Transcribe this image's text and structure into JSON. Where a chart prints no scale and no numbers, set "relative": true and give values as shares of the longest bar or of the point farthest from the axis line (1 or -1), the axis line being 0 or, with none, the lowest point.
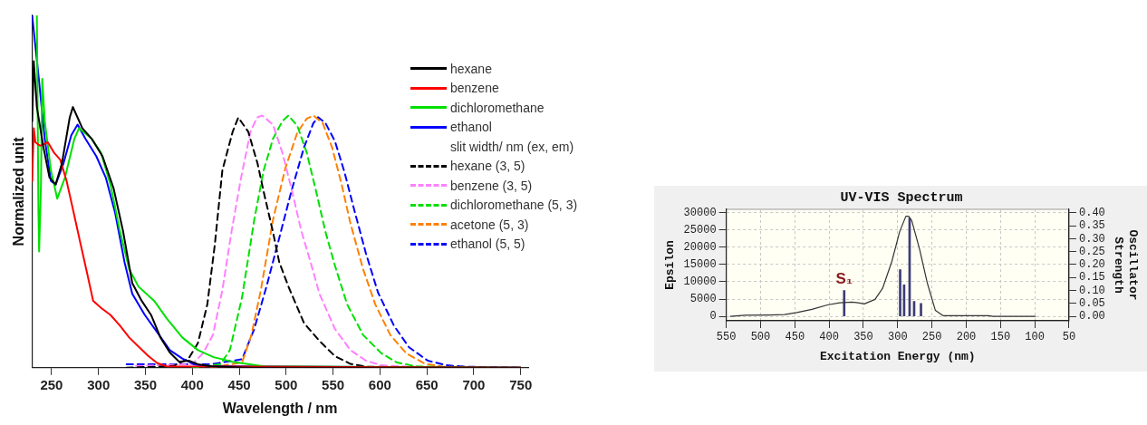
{
  "chart_data": [
    {
      "type": "line",
      "xlabel": "Wavelength / nm",
      "ylabel": "Normalized unit",
      "relative": true,
      "xlim": [
        229,
        758
      ],
      "xticks": [
        250,
        300,
        350,
        400,
        450,
        500,
        550,
        600,
        650,
        700,
        750
      ],
      "marker": "none",
      "legend": "top right",
      "annotations": [
        "slit width/ nm (ex, em)"
      ],
      "series": [
        {
          "name": "hexane",
          "color": "#000000",
          "line_style": "solid",
          "x": [
            229.3,
            231,
            234.3,
            241,
            247.7,
            254.3,
            261,
            269.3,
            272.7,
            277.7,
            282.7,
            292.7,
            304.3,
            316,
            326,
            336,
            346,
            356,
            366,
            376,
            386,
            396,
            406,
            420,
            460,
            750
          ],
          "values": [
            0.7,
            0.87,
            0.74,
            0.63,
            0.54,
            0.52,
            0.58,
            0.71,
            0.74,
            0.71,
            0.68,
            0.65,
            0.6,
            0.51,
            0.39,
            0.24,
            0.19,
            0.15,
            0.086,
            0.043,
            0.017,
            0.02,
            0.01,
            0.004,
            0,
            0
          ]
        },
        {
          "name": "benzene",
          "color": "#ff0000",
          "line_style": "solid",
          "x": [
            229.3,
            231,
            232.7,
            237.7,
            246,
            252.7,
            259.3,
            266,
            272.7,
            281,
            287.7,
            294.3,
            302.7,
            312.7,
            322.7,
            332.7,
            342.7,
            352.7,
            362.7,
            372.7,
            750
          ],
          "values": [
            0.53,
            0.68,
            0.64,
            0.63,
            0.64,
            0.61,
            0.59,
            0.53,
            0.45,
            0.35,
            0.27,
            0.19,
            0.17,
            0.15,
            0.12,
            0.086,
            0.06,
            0.034,
            0.013,
            0.004,
            0
          ]
        },
        {
          "name": "dichloromethane",
          "color": "#00e000",
          "line_style": "solid",
          "x": [
            234.3,
            236,
            236.7,
            238.7,
            240,
            242.7,
            249.3,
            256,
            264.3,
            274.3,
            279.3,
            292.7,
            302.7,
            312.7,
            322.7,
            332.7,
            342.7,
            359.3,
            372.7,
            389.3,
            406,
            422.7,
            442.7,
            462.7,
            476,
            750
          ],
          "values": [
            1.0,
            0.44,
            0.33,
            0.52,
            0.82,
            0.7,
            0.56,
            0.48,
            0.54,
            0.65,
            0.68,
            0.65,
            0.61,
            0.52,
            0.39,
            0.28,
            0.23,
            0.19,
            0.14,
            0.086,
            0.05,
            0.03,
            0.017,
            0.009,
            0.004,
            0
          ]
        },
        {
          "name": "ethanol",
          "color": "#0000ff",
          "line_style": "solid",
          "x": [
            229.3,
            236,
            242.7,
            249.3,
            254.3,
            262.7,
            271,
            277.7,
            286,
            297.7,
            307.7,
            317.7,
            327.7,
            336,
            349.3,
            362.7,
            376,
            389.3,
            402.7,
            416,
            750
          ],
          "values": [
            1.0,
            0.83,
            0.65,
            0.53,
            0.52,
            0.58,
            0.66,
            0.69,
            0.65,
            0.6,
            0.54,
            0.44,
            0.3,
            0.21,
            0.15,
            0.1,
            0.05,
            0.026,
            0.009,
            0.004,
            0
          ]
        },
        {
          "name": "hexane (3, 5)",
          "color": "#000000",
          "line_style": "dashed",
          "x": [
            330,
            380,
            396,
            406,
            416,
            424,
            432,
            443,
            449,
            459.6,
            469.5,
            476,
            486,
            492.6,
            502.5,
            519,
            535.5,
            552,
            568.5,
            585,
            650
          ],
          "values": [
            0,
            0.005,
            0.026,
            0.07,
            0.18,
            0.35,
            0.56,
            0.67,
            0.71,
            0.67,
            0.58,
            0.5,
            0.385,
            0.3,
            0.23,
            0.127,
            0.076,
            0.033,
            0.011,
            0.003,
            0
          ]
        },
        {
          "name": "benzene (3, 5)",
          "color": "#ff80ff",
          "line_style": "dashed",
          "x": [
            340,
            400,
            412,
            422,
            432,
            442,
            452,
            462,
            469,
            474.5,
            486,
            496,
            506,
            516,
            526,
            535.5,
            552,
            568.5,
            585,
            601.5,
            650
          ],
          "values": [
            0.005,
            0.01,
            0.043,
            0.094,
            0.22,
            0.39,
            0.54,
            0.67,
            0.71,
            0.716,
            0.69,
            0.61,
            0.505,
            0.39,
            0.3,
            0.21,
            0.11,
            0.05,
            0.02,
            0.007,
            0
          ]
        },
        {
          "name": "dichloromethane (5, 3)",
          "color": "#00e000",
          "line_style": "dashed",
          "x": [
            400,
            430,
            440,
            453,
            466,
            476,
            486,
            496,
            502.5,
            512,
            522,
            532,
            542,
            552,
            565,
            582,
            601.5,
            618,
            638,
            700
          ],
          "values": [
            0,
            0.01,
            0.05,
            0.2,
            0.42,
            0.56,
            0.65,
            0.7,
            0.716,
            0.686,
            0.61,
            0.5,
            0.385,
            0.29,
            0.18,
            0.093,
            0.041,
            0.015,
            0.004,
            0
          ]
        },
        {
          "name": "acetone (5, 3)",
          "color": "#ff8000",
          "line_style": "dashed",
          "x": [
            420,
            453,
            463,
            473,
            486,
            499,
            512,
            522,
            529,
            539,
            549,
            559,
            568.5,
            582,
            595,
            611,
            628,
            648,
            667.5,
            720
          ],
          "values": [
            0,
            0.015,
            0.093,
            0.22,
            0.42,
            0.565,
            0.668,
            0.707,
            0.716,
            0.694,
            0.625,
            0.522,
            0.41,
            0.28,
            0.18,
            0.093,
            0.041,
            0.011,
            0.003,
            0
          ]
        },
        {
          "name": "ethanol (5, 5)",
          "color": "#0000ff",
          "line_style": "dashed",
          "x": [
            330,
            420,
            453,
            466,
            479,
            492.6,
            506,
            519,
            529,
            534,
            542,
            552,
            562,
            572,
            585,
            598,
            615,
            631,
            651,
            671,
            690.6,
            750
          ],
          "values": [
            0.01,
            0.01,
            0.024,
            0.11,
            0.23,
            0.368,
            0.505,
            0.625,
            0.694,
            0.711,
            0.694,
            0.643,
            0.557,
            0.454,
            0.325,
            0.213,
            0.119,
            0.058,
            0.02,
            0.007,
            0.003,
            0
          ]
        }
      ]
    },
    {
      "type": "line",
      "title": "UV-VIS Spectrum",
      "xlabel": "Excitation Energy (nm)",
      "ylabel": "Epsilon",
      "y2label": "Oscillator Strength",
      "xlim": [
        550,
        50
      ],
      "xticks": [
        550,
        500,
        450,
        400,
        350,
        300,
        250,
        200,
        150,
        100,
        50
      ],
      "ylim": [
        -1300,
        31000
      ],
      "yticks": [
        0,
        5000,
        10000,
        15000,
        20000,
        25000,
        30000
      ],
      "y2lim": [
        -0.0173,
        0.4133
      ],
      "y2ticks": [
        {
          "value": 0,
          "label": "0.00"
        },
        {
          "value": 0.05,
          "label": "0.05"
        },
        {
          "value": 0.1,
          "label": "0.10"
        },
        {
          "value": 0.15,
          "label": "0.15"
        },
        {
          "value": 0.2,
          "label": "0.20"
        },
        {
          "value": 0.25,
          "label": "0.25"
        },
        {
          "value": 0.3,
          "label": "0.30"
        },
        {
          "value": 0.35,
          "label": "0.35"
        },
        {
          "value": 0.4,
          "label": "0.40"
        }
      ],
      "grid": true,
      "marker": "none",
      "annotations": [
        {
          "text": "S₁",
          "x": 378,
          "y": 7400
        }
      ],
      "series": [
        {
          "color": "#333333",
          "x": [
            544,
            523,
            487,
            465,
            447,
            425,
            402.5,
            384.5,
            366.6,
            357.7,
            348.7,
            333,
            322,
            308.5,
            297,
            288,
            284,
            279.4,
            268,
            257,
            245,
            234,
            167.6,
            161,
            99
          ],
          "values": [
            0,
            300,
            400,
            500,
            1100,
            2000,
            3300,
            3900,
            4100,
            3900,
            3600,
            4900,
            8100,
            15900,
            24600,
            29000,
            29000,
            27700,
            19400,
            9800,
            1700,
            200,
            200,
            0,
            0
          ]
        },
        {
          "type": "bar",
          "axis": "y2",
          "color": "#3c3c78",
          "x": [
            378,
            296.4,
            290.6,
            282.6,
            276,
            266
          ],
          "values": [
            0.1,
            0.18,
            0.122,
            0.38,
            0.058,
            0.05
          ]
        }
      ]
    }
  ]
}
